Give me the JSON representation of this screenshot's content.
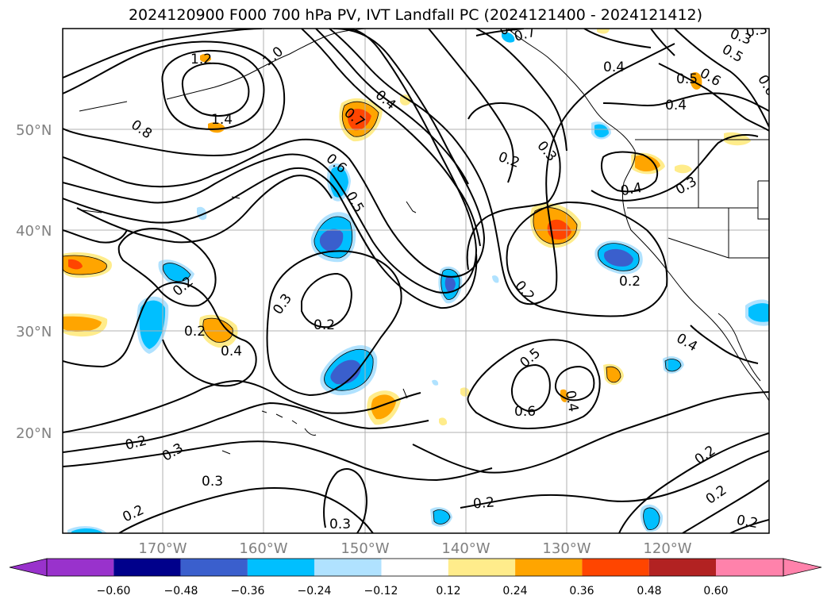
{
  "title": "2024120900 F000 700 hPa PV, IVT Landfall PC (2024121400 - 2024121412)",
  "map": {
    "lat_labels": [
      "50°N",
      "40°N",
      "30°N",
      "20°N"
    ],
    "lon_labels": [
      "170°W",
      "160°W",
      "150°W",
      "140°W",
      "130°W",
      "120°W"
    ],
    "contour_labels": [
      "1.2",
      "1.0",
      "1.4",
      "0.8",
      "0.7",
      "0.4",
      "0.6",
      "0.5",
      "0.2",
      "0.3",
      "0.2",
      "0.3",
      "0.4",
      "0.5",
      "0.6",
      "0.4",
      "0.3",
      "0.4",
      "0.2",
      "0.2",
      "0.2",
      "0.3",
      "0.2",
      "0.4",
      "0.2",
      "0.2",
      "0.4",
      "0.5",
      "0.4",
      "0.6",
      "0.2",
      "0.3",
      "0.3",
      "0.2",
      "0.2",
      "0.2",
      "0.2",
      "0.3",
      "0.7",
      "0.3",
      "0.5",
      "0.6"
    ]
  },
  "colorbar": {
    "tick_labels": [
      "−0.60",
      "−0.48",
      "−0.36",
      "−0.24",
      "−0.12",
      "0.12",
      "0.24",
      "0.36",
      "0.48",
      "0.60"
    ],
    "colors": [
      "#9932cc",
      "#00008b",
      "#3a5fcd",
      "#00bfff",
      "#b0e2ff",
      "#ffffff",
      "#ffec8b",
      "#ffa500",
      "#ff4500",
      "#b22222",
      "#ff82ab"
    ]
  },
  "colors": {
    "pos_light": "#ffec8b",
    "pos_mid": "#ffa500",
    "pos_strong": "#ff4500",
    "neg_light": "#b0e2ff",
    "neg_mid": "#00bfff",
    "neg_strong": "#3a5fcd"
  }
}
